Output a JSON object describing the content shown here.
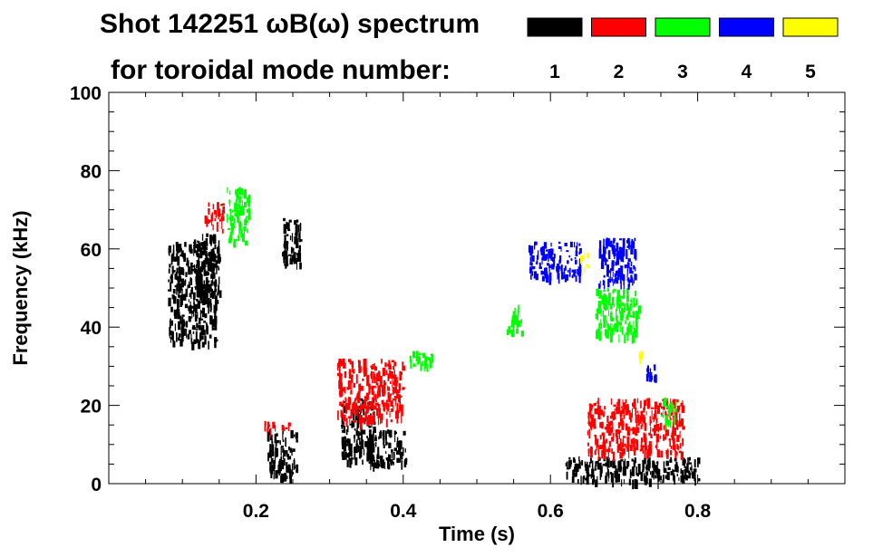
{
  "chart_data": {
    "type": "heatmap",
    "title_line1": "Shot 142251 ωB(ω) spectrum",
    "title_line2": "for toroidal mode number:",
    "xlabel": "Time (s)",
    "ylabel": "Frequency (kHz)",
    "xlim": [
      0.0,
      1.0
    ],
    "ylim": [
      0,
      100
    ],
    "x_ticks": [
      0.2,
      0.4,
      0.6,
      0.8
    ],
    "x_tick_labels": [
      "0.2",
      "0.4",
      "0.6",
      "0.8"
    ],
    "y_ticks": [
      0,
      20,
      40,
      60,
      80,
      100
    ],
    "y_tick_labels": [
      "0",
      "20",
      "40",
      "60",
      "80",
      "100"
    ],
    "legend_placement": "top",
    "grid": false,
    "series": [
      {
        "name": "1",
        "color": "#000000"
      },
      {
        "name": "2",
        "color": "#ff0000"
      },
      {
        "name": "3",
        "color": "#00ff00"
      },
      {
        "name": "4",
        "color": "#0000ff"
      },
      {
        "name": "5",
        "color": "#ffff00"
      }
    ],
    "blobs": [
      {
        "mode": "1",
        "t": [
          0.08,
          0.145
        ],
        "f": [
          36,
          62
        ]
      },
      {
        "mode": "1",
        "t": [
          0.115,
          0.15
        ],
        "f": [
          46,
          64
        ]
      },
      {
        "mode": "1",
        "t": [
          0.215,
          0.255
        ],
        "f": [
          2,
          14
        ]
      },
      {
        "mode": "1",
        "t": [
          0.235,
          0.26
        ],
        "f": [
          56,
          68
        ]
      },
      {
        "mode": "1",
        "t": [
          0.315,
          0.36
        ],
        "f": [
          6,
          22
        ]
      },
      {
        "mode": "1",
        "t": [
          0.35,
          0.405
        ],
        "f": [
          5,
          14
        ]
      },
      {
        "mode": "1",
        "t": [
          0.62,
          0.8
        ],
        "f": [
          1,
          7
        ]
      },
      {
        "mode": "2",
        "t": [
          0.13,
          0.155
        ],
        "f": [
          65,
          72
        ]
      },
      {
        "mode": "2",
        "t": [
          0.21,
          0.245
        ],
        "f": [
          14,
          16
        ]
      },
      {
        "mode": "2",
        "t": [
          0.31,
          0.4
        ],
        "f": [
          16,
          32
        ]
      },
      {
        "mode": "2",
        "t": [
          0.65,
          0.78
        ],
        "f": [
          8,
          22
        ]
      },
      {
        "mode": "3",
        "t": [
          0.16,
          0.19
        ],
        "f": [
          62,
          76
        ]
      },
      {
        "mode": "3",
        "t": [
          0.405,
          0.44
        ],
        "f": [
          30,
          34
        ]
      },
      {
        "mode": "3",
        "t": [
          0.54,
          0.56
        ],
        "f": [
          39,
          46
        ]
      },
      {
        "mode": "3",
        "t": [
          0.66,
          0.72
        ],
        "f": [
          38,
          50
        ]
      },
      {
        "mode": "3",
        "t": [
          0.75,
          0.77
        ],
        "f": [
          16,
          22
        ]
      },
      {
        "mode": "4",
        "t": [
          0.57,
          0.64
        ],
        "f": [
          53,
          62
        ]
      },
      {
        "mode": "4",
        "t": [
          0.665,
          0.715
        ],
        "f": [
          51,
          63
        ]
      },
      {
        "mode": "4",
        "t": [
          0.73,
          0.745
        ],
        "f": [
          27,
          31
        ]
      },
      {
        "mode": "5",
        "t": [
          0.64,
          0.65
        ],
        "f": [
          55,
          59
        ]
      },
      {
        "mode": "5",
        "t": [
          0.72,
          0.725
        ],
        "f": [
          32,
          34
        ]
      }
    ]
  }
}
